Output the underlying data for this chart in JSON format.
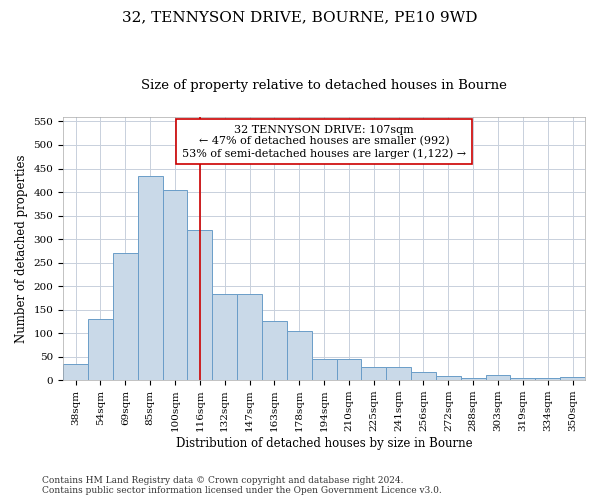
{
  "title": "32, TENNYSON DRIVE, BOURNE, PE10 9WD",
  "subtitle": "Size of property relative to detached houses in Bourne",
  "xlabel": "Distribution of detached houses by size in Bourne",
  "ylabel": "Number of detached properties",
  "categories": [
    "38sqm",
    "54sqm",
    "69sqm",
    "85sqm",
    "100sqm",
    "116sqm",
    "132sqm",
    "147sqm",
    "163sqm",
    "178sqm",
    "194sqm",
    "210sqm",
    "225sqm",
    "241sqm",
    "256sqm",
    "272sqm",
    "288sqm",
    "303sqm",
    "319sqm",
    "334sqm",
    "350sqm"
  ],
  "values": [
    35,
    130,
    270,
    435,
    405,
    320,
    183,
    183,
    125,
    105,
    45,
    45,
    28,
    28,
    18,
    8,
    4,
    10,
    5,
    4,
    6
  ],
  "bar_color": "#c9d9e8",
  "bar_edge_color": "#6a9dc8",
  "vline_x": 5.0,
  "vline_color": "#cc0000",
  "annotation_text": "32 TENNYSON DRIVE: 107sqm\n← 47% of detached houses are smaller (992)\n53% of semi-detached houses are larger (1,122) →",
  "annotation_box_color": "#ffffff",
  "annotation_box_edge_color": "#cc0000",
  "ylim": [
    0,
    560
  ],
  "yticks": [
    0,
    50,
    100,
    150,
    200,
    250,
    300,
    350,
    400,
    450,
    500,
    550
  ],
  "footer": "Contains HM Land Registry data © Crown copyright and database right 2024.\nContains public sector information licensed under the Open Government Licence v3.0.",
  "bg_color": "#ffffff",
  "grid_color": "#c8d0dc",
  "title_fontsize": 11,
  "subtitle_fontsize": 9.5,
  "axis_label_fontsize": 8.5,
  "tick_fontsize": 7.5,
  "footer_fontsize": 6.5,
  "annotation_fontsize": 8
}
